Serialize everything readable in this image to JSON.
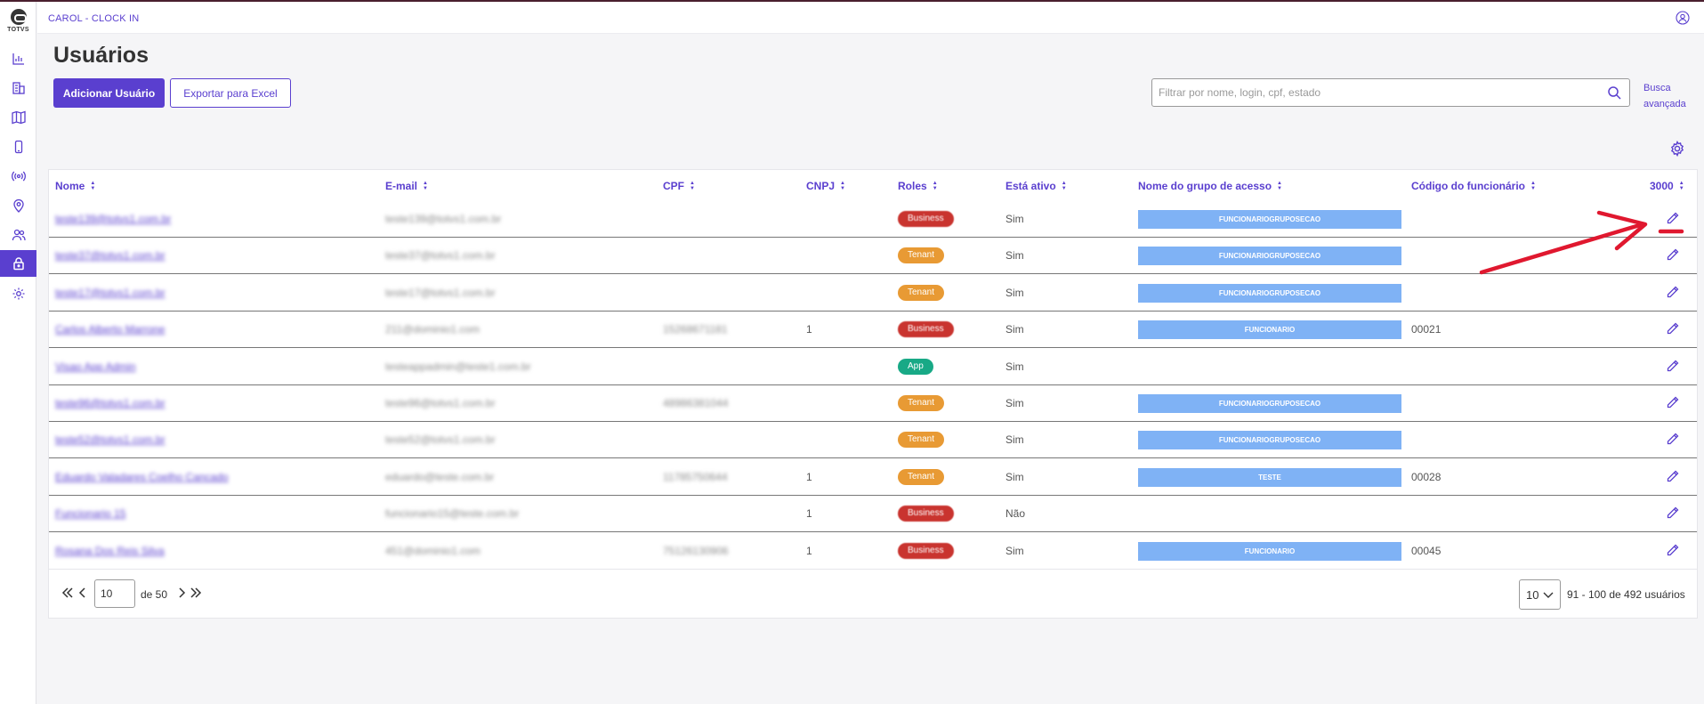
{
  "sidebar": {
    "logo_text": "TOTVS",
    "items": [
      {
        "icon": "bar-chart-icon",
        "active": false
      },
      {
        "icon": "building-icon",
        "active": false
      },
      {
        "icon": "map-icon",
        "active": false
      },
      {
        "icon": "mobile-icon",
        "active": false
      },
      {
        "icon": "broadcast-icon",
        "active": false
      },
      {
        "icon": "location-pin-icon",
        "active": false
      },
      {
        "icon": "users-icon",
        "active": false
      },
      {
        "icon": "lock-icon",
        "active": true
      },
      {
        "icon": "gear-icon",
        "active": false
      }
    ]
  },
  "header": {
    "app_title": "CAROL - CLOCK IN"
  },
  "page": {
    "title": "Usuários",
    "add_button": "Adicionar Usuário",
    "export_button": "Exportar para Excel",
    "search_placeholder": "Filtrar por nome, login, cpf, estado",
    "advanced_search_line1": "Busca",
    "advanced_search_line2": "avançada"
  },
  "table": {
    "columns": [
      "Nome",
      "E-mail",
      "CPF",
      "CNPJ",
      "Roles",
      "Está ativo",
      "Nome do grupo de acesso",
      "Código do funcionário",
      "3000"
    ],
    "rows": [
      {
        "name": "teste139@totvs1.com.br",
        "email": "teste139@totvs1.com.br",
        "cpf": "",
        "cnpj": "",
        "role": "Business",
        "active": "Sim",
        "group": "FUNCIONARIOGRUPOSECAO",
        "code": ""
      },
      {
        "name": "teste37@totvs1.com.br",
        "email": "teste37@totvs1.com.br",
        "cpf": "",
        "cnpj": "",
        "role": "Tenant",
        "active": "Sim",
        "group": "FUNCIONARIOGRUPOSECAO",
        "code": ""
      },
      {
        "name": "teste17@totvs1.com.br",
        "email": "teste17@totvs1.com.br",
        "cpf": "",
        "cnpj": "",
        "role": "Tenant",
        "active": "Sim",
        "group": "FUNCIONARIOGRUPOSECAO",
        "code": ""
      },
      {
        "name": "Carlos Alberto Marrone",
        "email": "211@dominio1.com",
        "cpf": "15268671181",
        "cnpj": "1",
        "role": "Business",
        "active": "Sim",
        "group": "FUNCIONARIO",
        "code": "00021"
      },
      {
        "name": "Visao App Admin",
        "email": "testeappadmin@teste1.com.br",
        "cpf": "",
        "cnpj": "",
        "role": "App",
        "active": "Sim",
        "group": "",
        "code": ""
      },
      {
        "name": "teste96@totvs1.com.br",
        "email": "teste96@totvs1.com.br",
        "cpf": "48986381044",
        "cnpj": "",
        "role": "Tenant",
        "active": "Sim",
        "group": "FUNCIONARIOGRUPOSECAO",
        "code": ""
      },
      {
        "name": "teste52@totvs1.com.br",
        "email": "teste52@totvs1.com.br",
        "cpf": "",
        "cnpj": "",
        "role": "Tenant",
        "active": "Sim",
        "group": "FUNCIONARIOGRUPOSECAO",
        "code": ""
      },
      {
        "name": "Eduardo Valadares Coelho Cancado",
        "email": "eduardo@teste.com.br",
        "cpf": "11785750644",
        "cnpj": "1",
        "role": "Tenant",
        "active": "Sim",
        "group": "TESTE",
        "code": "00028"
      },
      {
        "name": "Funcionario 15",
        "email": "funcionario15@teste.com.br",
        "cpf": "",
        "cnpj": "1",
        "role": "Business",
        "active": "Não",
        "group": "",
        "code": ""
      },
      {
        "name": "Rosana Dos Reis Silva",
        "email": "451@dominio1.com",
        "cpf": "75126130906",
        "cnpj": "1",
        "role": "Business",
        "active": "Sim",
        "group": "FUNCIONARIO",
        "code": "00045"
      }
    ]
  },
  "pagination": {
    "current_page": "10",
    "of_text": "de 50",
    "per_page": "10",
    "range_text": "91 - 100 de 492 usuários"
  },
  "colors": {
    "accent": "#5a3fcf",
    "business": "#c9342f",
    "tenant": "#e89a34",
    "app": "#18a986",
    "group_bar": "#7fb2f5",
    "annotation": "#e0182f"
  }
}
